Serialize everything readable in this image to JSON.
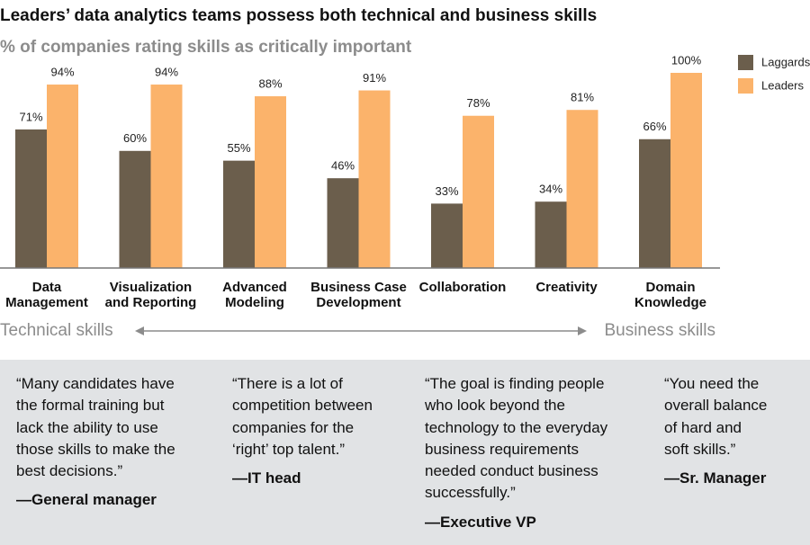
{
  "chart_data": {
    "type": "bar",
    "title": "Leaders’ data analytics teams possess both technical and business skills",
    "subtitle": "% of companies rating skills as critically important",
    "categories": [
      "Data Management",
      "Visualization and Reporting",
      "Advanced Modeling",
      "Business Case Development",
      "Collaboration",
      "Creativity",
      "Domain Knowledge"
    ],
    "series": [
      {
        "name": "Laggards",
        "color": "#6b5e4c",
        "values": [
          71,
          60,
          55,
          46,
          33,
          34,
          66
        ],
        "value_labels": [
          "71%",
          "60%",
          "55%",
          "46%",
          "33%",
          "34%",
          "66%"
        ]
      },
      {
        "name": "Leaders",
        "color": "#fbb36b",
        "values": [
          94,
          94,
          88,
          91,
          78,
          81,
          100
        ],
        "value_labels": [
          "94%",
          "94%",
          "88%",
          "91%",
          "78%",
          "81%",
          "100%"
        ]
      }
    ],
    "ylim": [
      0,
      100
    ],
    "legend": "top-right"
  },
  "spectrum": {
    "left": "Technical skills",
    "right": "Business skills"
  },
  "quotes": [
    {
      "lines": [
        "“Many candidates have",
        "the formal training but",
        "lack the ability to use",
        "those skills to make the",
        "best decisions.”"
      ],
      "attribution": "—General manager"
    },
    {
      "lines": [
        "“There is a lot of",
        "competition between",
        "companies for the",
        "‘right’ top talent.”"
      ],
      "attribution": "—IT head"
    },
    {
      "lines": [
        "“The goal is finding people",
        "who look beyond the",
        "technology to the everyday",
        "business requirements",
        "needed conduct business",
        "successfully.”"
      ],
      "attribution": "—Executive VP"
    },
    {
      "lines": [
        "“You need the",
        "overall balance",
        "of hard and",
        "soft skills.”"
      ],
      "attribution": "—Sr. Manager"
    }
  ]
}
